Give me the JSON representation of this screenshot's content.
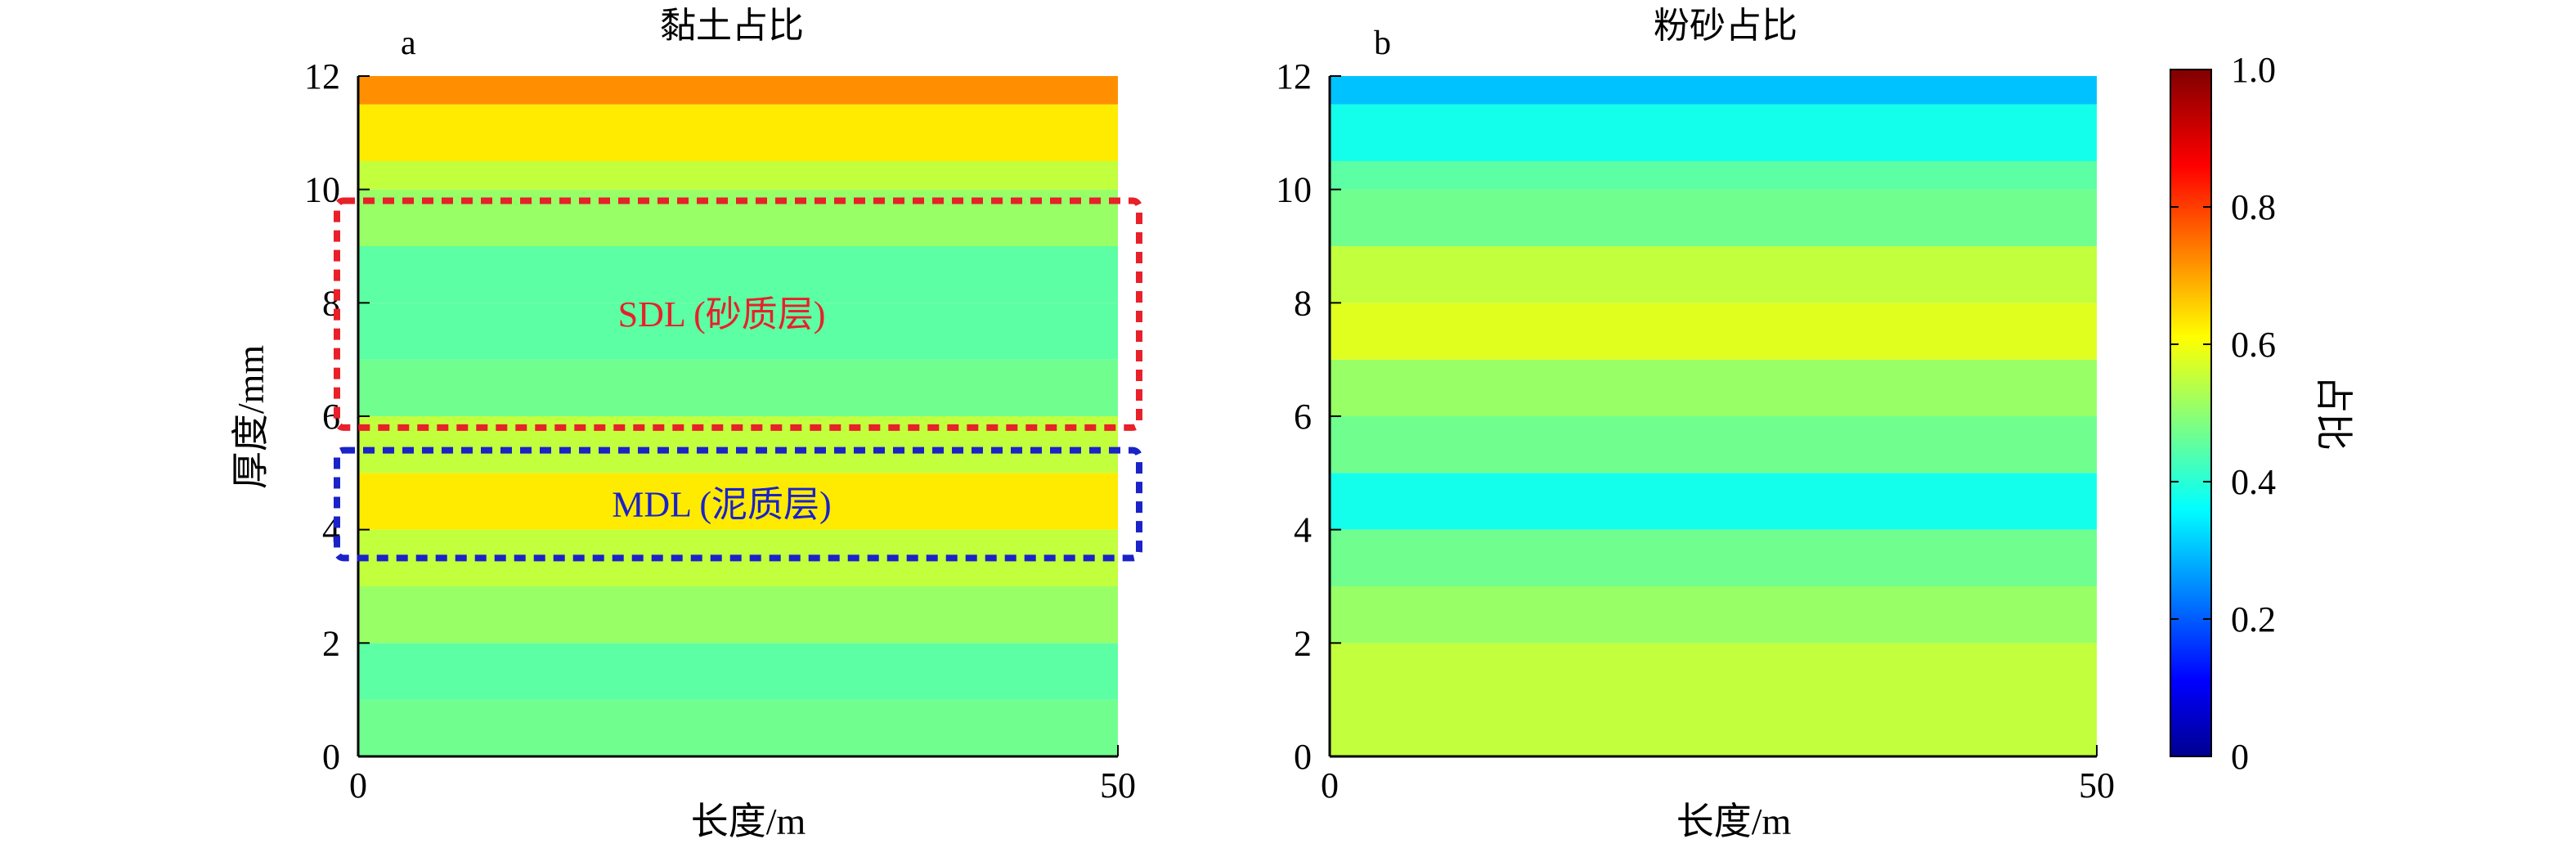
{
  "chart_data": [
    {
      "type": "heatmap",
      "panel": "a",
      "title": "黏土占比",
      "xlabel": "长度/m",
      "ylabel": "厚度/mm",
      "xlim": [
        0,
        50
      ],
      "ylim": [
        0,
        12
      ],
      "xticks": [
        "0",
        "50"
      ],
      "yticks": [
        "0",
        "2",
        "4",
        "6",
        "8",
        "10",
        "12"
      ],
      "layers": [
        {
          "y0": 0,
          "y1": 1,
          "value": 0.47
        },
        {
          "y0": 1,
          "y1": 2,
          "value": 0.45
        },
        {
          "y0": 2,
          "y1": 3,
          "value": 0.51
        },
        {
          "y0": 3,
          "y1": 4,
          "value": 0.55
        },
        {
          "y0": 4,
          "y1": 5,
          "value": 0.63
        },
        {
          "y0": 5,
          "y1": 6,
          "value": 0.55
        },
        {
          "y0": 6,
          "y1": 7,
          "value": 0.47
        },
        {
          "y0": 7,
          "y1": 8,
          "value": 0.45
        },
        {
          "y0": 8,
          "y1": 9,
          "value": 0.45
        },
        {
          "y0": 9,
          "y1": 10,
          "value": 0.51
        },
        {
          "y0": 10,
          "y1": 10.5,
          "value": 0.55
        },
        {
          "y0": 10.5,
          "y1": 11.5,
          "value": 0.63
        },
        {
          "y0": 11.5,
          "y1": 12,
          "value": 0.72
        }
      ],
      "annotations": [
        {
          "label": "SDL (砂质层)",
          "color": "#e8202a",
          "y_from": 5.8,
          "y_to": 9.8
        },
        {
          "label": "MDL (泥质层)",
          "color": "#1a22c8",
          "y_from": 3.5,
          "y_to": 5.4
        }
      ]
    },
    {
      "type": "heatmap",
      "panel": "b",
      "title": "粉砂占比",
      "xlabel": "长度/m",
      "ylabel": "",
      "xlim": [
        0,
        50
      ],
      "ylim": [
        0,
        12
      ],
      "xticks": [
        "0",
        "50"
      ],
      "yticks": [
        "0",
        "2",
        "4",
        "6",
        "8",
        "10",
        "12"
      ],
      "layers": [
        {
          "y0": 0,
          "y1": 2,
          "value": 0.55
        },
        {
          "y0": 2,
          "y1": 3,
          "value": 0.51
        },
        {
          "y0": 3,
          "y1": 4,
          "value": 0.47
        },
        {
          "y0": 4,
          "y1": 5,
          "value": 0.38
        },
        {
          "y0": 5,
          "y1": 6,
          "value": 0.47
        },
        {
          "y0": 6,
          "y1": 7,
          "value": 0.51
        },
        {
          "y0": 7,
          "y1": 8,
          "value": 0.58
        },
        {
          "y0": 8,
          "y1": 9,
          "value": 0.55
        },
        {
          "y0": 9,
          "y1": 10,
          "value": 0.47
        },
        {
          "y0": 10,
          "y1": 10.5,
          "value": 0.45
        },
        {
          "y0": 10.5,
          "y1": 11.5,
          "value": 0.38
        },
        {
          "y0": 11.5,
          "y1": 12,
          "value": 0.3
        }
      ]
    }
  ],
  "colorbar": {
    "label": "占比",
    "range": [
      0,
      1
    ],
    "ticks": [
      "0",
      "0.2",
      "0.4",
      "0.6",
      "0.8",
      "1.0"
    ],
    "colormap": "jet"
  },
  "colors": {
    "jet_stops": [
      "#00008f",
      "#0000ff",
      "#00ffff",
      "#ffff00",
      "#ff0000",
      "#800000"
    ]
  }
}
